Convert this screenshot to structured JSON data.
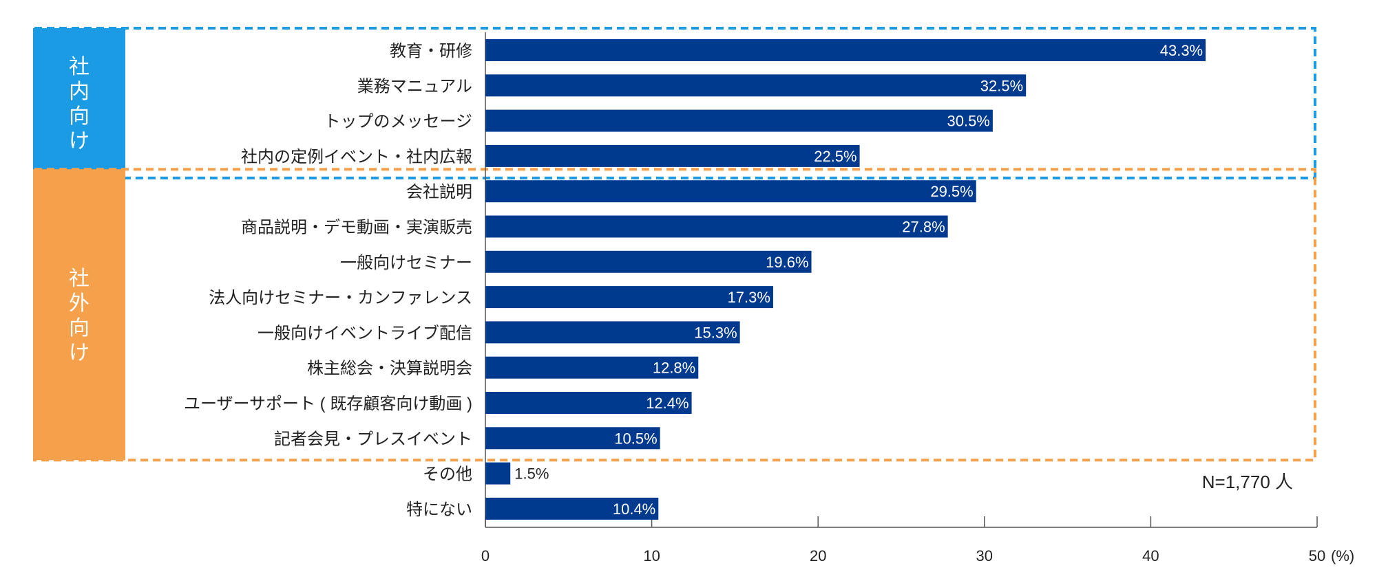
{
  "chart_data": {
    "type": "bar",
    "orientation": "horizontal",
    "categories": [
      "教育・研修",
      "業務マニュアル",
      "トップのメッセージ",
      "社内の定例イベント・社内広報",
      "会社説明",
      "商品説明・デモ動画・実演販売",
      "一般向けセミナー",
      "法人向けセミナー・カンファレンス",
      "一般向けイベントライブ配信",
      "株主総会・決算説明会",
      "ユーザーサポート ( 既存顧客向け動画 )",
      "記者会見・プレスイベント",
      "その他",
      "特にない"
    ],
    "values": [
      43.3,
      32.5,
      30.5,
      22.5,
      29.5,
      27.8,
      19.6,
      17.3,
      15.3,
      12.8,
      12.4,
      10.5,
      1.5,
      10.4
    ],
    "value_labels": [
      "43.3%",
      "32.5%",
      "30.5%",
      "22.5%",
      "29.5%",
      "27.8%",
      "19.6%",
      "17.3%",
      "15.3%",
      "12.8%",
      "12.4%",
      "10.5%",
      "1.5%",
      "10.4%"
    ],
    "groups": [
      {
        "label": "社内向け",
        "chars": [
          "社",
          "内",
          "向",
          "け"
        ],
        "start": 0,
        "end": 3,
        "color": "#1a9be3"
      },
      {
        "label": "社外向け",
        "chars": [
          "社",
          "外",
          "向",
          "け"
        ],
        "start": 4,
        "end": 11,
        "color": "#f5a04a"
      }
    ],
    "x_ticks": [
      "0",
      "10",
      "20",
      "30",
      "40",
      "50"
    ],
    "x_unit": "(%)",
    "xlim": [
      0,
      50
    ],
    "sample_note": "N=1,770 人",
    "bar_color": "#003a8f",
    "grid": false
  }
}
